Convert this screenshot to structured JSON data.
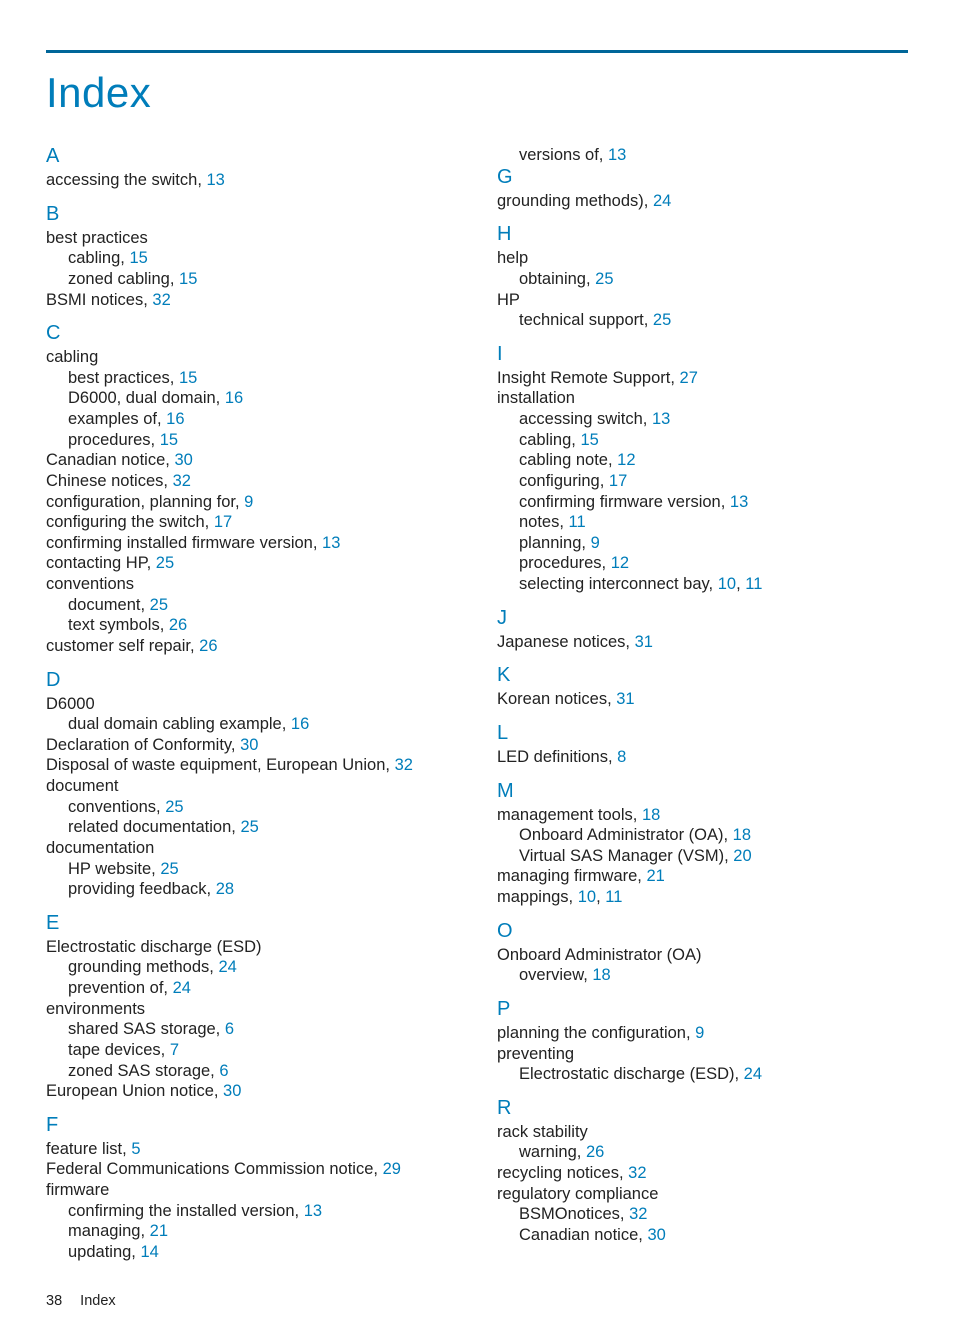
{
  "title": "Index",
  "footer": {
    "page_number": "38",
    "section": "Index"
  },
  "colors": {
    "accent": "#007dba",
    "rule": "#006699",
    "text": "#222222",
    "bg": "#ffffff"
  },
  "typography": {
    "body_family": "Segoe UI Light / Helvetica Neue",
    "body_size_pt": 12,
    "title_size_pt": 32
  },
  "left_column": [
    {
      "type": "letter",
      "value": "A"
    },
    {
      "type": "entry",
      "level": 0,
      "text": "accessing the switch,",
      "pages": [
        "13"
      ]
    },
    {
      "type": "letter",
      "value": "B"
    },
    {
      "type": "entry",
      "level": 0,
      "text": "best practices"
    },
    {
      "type": "entry",
      "level": 1,
      "text": "cabling,",
      "pages": [
        "15"
      ]
    },
    {
      "type": "entry",
      "level": 1,
      "text": "zoned cabling,",
      "pages": [
        "15"
      ]
    },
    {
      "type": "entry",
      "level": 0,
      "text": "BSMI notices,",
      "pages": [
        "32"
      ]
    },
    {
      "type": "letter",
      "value": "C"
    },
    {
      "type": "entry",
      "level": 0,
      "text": "cabling"
    },
    {
      "type": "entry",
      "level": 1,
      "text": "best practices,",
      "pages": [
        "15"
      ]
    },
    {
      "type": "entry",
      "level": 1,
      "text": "D6000, dual domain,",
      "pages": [
        "16"
      ]
    },
    {
      "type": "entry",
      "level": 1,
      "text": "examples of,",
      "pages": [
        "16"
      ]
    },
    {
      "type": "entry",
      "level": 1,
      "text": "procedures,",
      "pages": [
        "15"
      ]
    },
    {
      "type": "entry",
      "level": 0,
      "text": "Canadian notice,",
      "pages": [
        "30"
      ]
    },
    {
      "type": "entry",
      "level": 0,
      "text": "Chinese notices,",
      "pages": [
        "32"
      ]
    },
    {
      "type": "entry",
      "level": 0,
      "text": "configuration, planning for,",
      "pages": [
        "9"
      ]
    },
    {
      "type": "entry",
      "level": 0,
      "text": "configuring the switch,",
      "pages": [
        "17"
      ]
    },
    {
      "type": "entry",
      "level": 0,
      "text": "confirming installed firmware version,",
      "pages": [
        "13"
      ]
    },
    {
      "type": "entry",
      "level": 0,
      "text": "contacting HP,",
      "pages": [
        "25"
      ]
    },
    {
      "type": "entry",
      "level": 0,
      "text": "conventions"
    },
    {
      "type": "entry",
      "level": 1,
      "text": "document,",
      "pages": [
        "25"
      ]
    },
    {
      "type": "entry",
      "level": 1,
      "text": "text symbols,",
      "pages": [
        "26"
      ]
    },
    {
      "type": "entry",
      "level": 0,
      "text": "customer self repair,",
      "pages": [
        "26"
      ]
    },
    {
      "type": "letter",
      "value": "D"
    },
    {
      "type": "entry",
      "level": 0,
      "text": "D6000"
    },
    {
      "type": "entry",
      "level": 1,
      "text": "dual domain cabling example,",
      "pages": [
        "16"
      ]
    },
    {
      "type": "entry",
      "level": 0,
      "text": "Declaration of Conformity,",
      "pages": [
        "30"
      ]
    },
    {
      "type": "entry",
      "level": 0,
      "text": "Disposal of waste equipment, European Union,",
      "pages": [
        "32"
      ]
    },
    {
      "type": "entry",
      "level": 0,
      "text": "document"
    },
    {
      "type": "entry",
      "level": 1,
      "text": "conventions,",
      "pages": [
        "25"
      ]
    },
    {
      "type": "entry",
      "level": 1,
      "text": "related documentation,",
      "pages": [
        "25"
      ]
    },
    {
      "type": "entry",
      "level": 0,
      "text": "documentation"
    },
    {
      "type": "entry",
      "level": 1,
      "text": "HP website,",
      "pages": [
        "25"
      ]
    },
    {
      "type": "entry",
      "level": 1,
      "text": "providing feedback,",
      "pages": [
        "28"
      ]
    },
    {
      "type": "letter",
      "value": "E"
    },
    {
      "type": "entry",
      "level": 0,
      "text": "Electrostatic discharge (ESD)"
    },
    {
      "type": "entry",
      "level": 1,
      "text": "grounding methods,",
      "pages": [
        "24"
      ]
    },
    {
      "type": "entry",
      "level": 1,
      "text": "prevention of,",
      "pages": [
        "24"
      ]
    },
    {
      "type": "entry",
      "level": 0,
      "text": "environments"
    },
    {
      "type": "entry",
      "level": 1,
      "text": "shared SAS storage,",
      "pages": [
        "6"
      ]
    },
    {
      "type": "entry",
      "level": 1,
      "text": "tape devices,",
      "pages": [
        "7"
      ]
    },
    {
      "type": "entry",
      "level": 1,
      "text": "zoned SAS storage,",
      "pages": [
        "6"
      ]
    },
    {
      "type": "entry",
      "level": 0,
      "text": "European Union notice,",
      "pages": [
        "30"
      ]
    },
    {
      "type": "letter",
      "value": "F"
    },
    {
      "type": "entry",
      "level": 0,
      "text": "feature list,",
      "pages": [
        "5"
      ]
    },
    {
      "type": "entry",
      "level": 0,
      "text": "Federal Communications Commission notice,",
      "pages": [
        "29"
      ]
    },
    {
      "type": "entry",
      "level": 0,
      "text": "firmware"
    },
    {
      "type": "entry",
      "level": 1,
      "text": "confirming the installed version,",
      "pages": [
        "13"
      ]
    },
    {
      "type": "entry",
      "level": 1,
      "text": "managing,",
      "pages": [
        "21"
      ]
    },
    {
      "type": "entry",
      "level": 1,
      "text": "updating,",
      "pages": [
        "14"
      ]
    }
  ],
  "right_column": [
    {
      "type": "entry",
      "level": 1,
      "text": "versions of,",
      "pages": [
        "13"
      ]
    },
    {
      "type": "letter",
      "value": "G"
    },
    {
      "type": "entry",
      "level": 0,
      "text": "grounding methods),",
      "pages": [
        "24"
      ]
    },
    {
      "type": "letter",
      "value": "H"
    },
    {
      "type": "entry",
      "level": 0,
      "text": "help"
    },
    {
      "type": "entry",
      "level": 1,
      "text": "obtaining,",
      "pages": [
        "25"
      ]
    },
    {
      "type": "entry",
      "level": 0,
      "text": "HP"
    },
    {
      "type": "entry",
      "level": 1,
      "text": "technical support,",
      "pages": [
        "25"
      ]
    },
    {
      "type": "letter",
      "value": "I"
    },
    {
      "type": "entry",
      "level": 0,
      "text": "Insight Remote Support,",
      "pages": [
        "27"
      ]
    },
    {
      "type": "entry",
      "level": 0,
      "text": "installation"
    },
    {
      "type": "entry",
      "level": 1,
      "text": "accessing switch,",
      "pages": [
        "13"
      ]
    },
    {
      "type": "entry",
      "level": 1,
      "text": "cabling,",
      "pages": [
        "15"
      ]
    },
    {
      "type": "entry",
      "level": 1,
      "text": "cabling note,",
      "pages": [
        "12"
      ]
    },
    {
      "type": "entry",
      "level": 1,
      "text": "configuring,",
      "pages": [
        "17"
      ]
    },
    {
      "type": "entry",
      "level": 1,
      "text": "confirming firmware version,",
      "pages": [
        "13"
      ]
    },
    {
      "type": "entry",
      "level": 1,
      "text": "notes,",
      "pages": [
        "11"
      ]
    },
    {
      "type": "entry",
      "level": 1,
      "text": "planning,",
      "pages": [
        "9"
      ]
    },
    {
      "type": "entry",
      "level": 1,
      "text": "procedures,",
      "pages": [
        "12"
      ]
    },
    {
      "type": "entry",
      "level": 1,
      "text": "selecting interconnect bay,",
      "pages": [
        "10",
        "11"
      ]
    },
    {
      "type": "letter",
      "value": "J"
    },
    {
      "type": "entry",
      "level": 0,
      "text": "Japanese notices,",
      "pages": [
        "31"
      ]
    },
    {
      "type": "letter",
      "value": "K"
    },
    {
      "type": "entry",
      "level": 0,
      "text": "Korean notices,",
      "pages": [
        "31"
      ]
    },
    {
      "type": "letter",
      "value": "L"
    },
    {
      "type": "entry",
      "level": 0,
      "text": "LED definitions,",
      "pages": [
        "8"
      ]
    },
    {
      "type": "letter",
      "value": "M"
    },
    {
      "type": "entry",
      "level": 0,
      "text": "management tools,",
      "pages": [
        "18"
      ]
    },
    {
      "type": "entry",
      "level": 1,
      "text": "Onboard Administrator (OA),",
      "pages": [
        "18"
      ]
    },
    {
      "type": "entry",
      "level": 1,
      "text": "Virtual SAS Manager (VSM),",
      "pages": [
        "20"
      ]
    },
    {
      "type": "entry",
      "level": 0,
      "text": "managing firmware,",
      "pages": [
        "21"
      ]
    },
    {
      "type": "entry",
      "level": 0,
      "text": "mappings,",
      "pages": [
        "10",
        "11"
      ]
    },
    {
      "type": "letter",
      "value": "O"
    },
    {
      "type": "entry",
      "level": 0,
      "text": "Onboard Administrator (OA)"
    },
    {
      "type": "entry",
      "level": 1,
      "text": "overview,",
      "pages": [
        "18"
      ]
    },
    {
      "type": "letter",
      "value": "P"
    },
    {
      "type": "entry",
      "level": 0,
      "text": "planning the configuration,",
      "pages": [
        "9"
      ]
    },
    {
      "type": "entry",
      "level": 0,
      "text": "preventing"
    },
    {
      "type": "entry",
      "level": 1,
      "text": "Electrostatic discharge (ESD),",
      "pages": [
        "24"
      ]
    },
    {
      "type": "letter",
      "value": "R"
    },
    {
      "type": "entry",
      "level": 0,
      "text": "rack stability"
    },
    {
      "type": "entry",
      "level": 1,
      "text": "warning,",
      "pages": [
        "26"
      ]
    },
    {
      "type": "entry",
      "level": 0,
      "text": "recycling notices,",
      "pages": [
        "32"
      ]
    },
    {
      "type": "entry",
      "level": 0,
      "text": "regulatory compliance"
    },
    {
      "type": "entry",
      "level": 1,
      "text": "BSMOnotices,",
      "pages": [
        "32"
      ]
    },
    {
      "type": "entry",
      "level": 1,
      "text": "Canadian notice,",
      "pages": [
        "30"
      ]
    }
  ]
}
